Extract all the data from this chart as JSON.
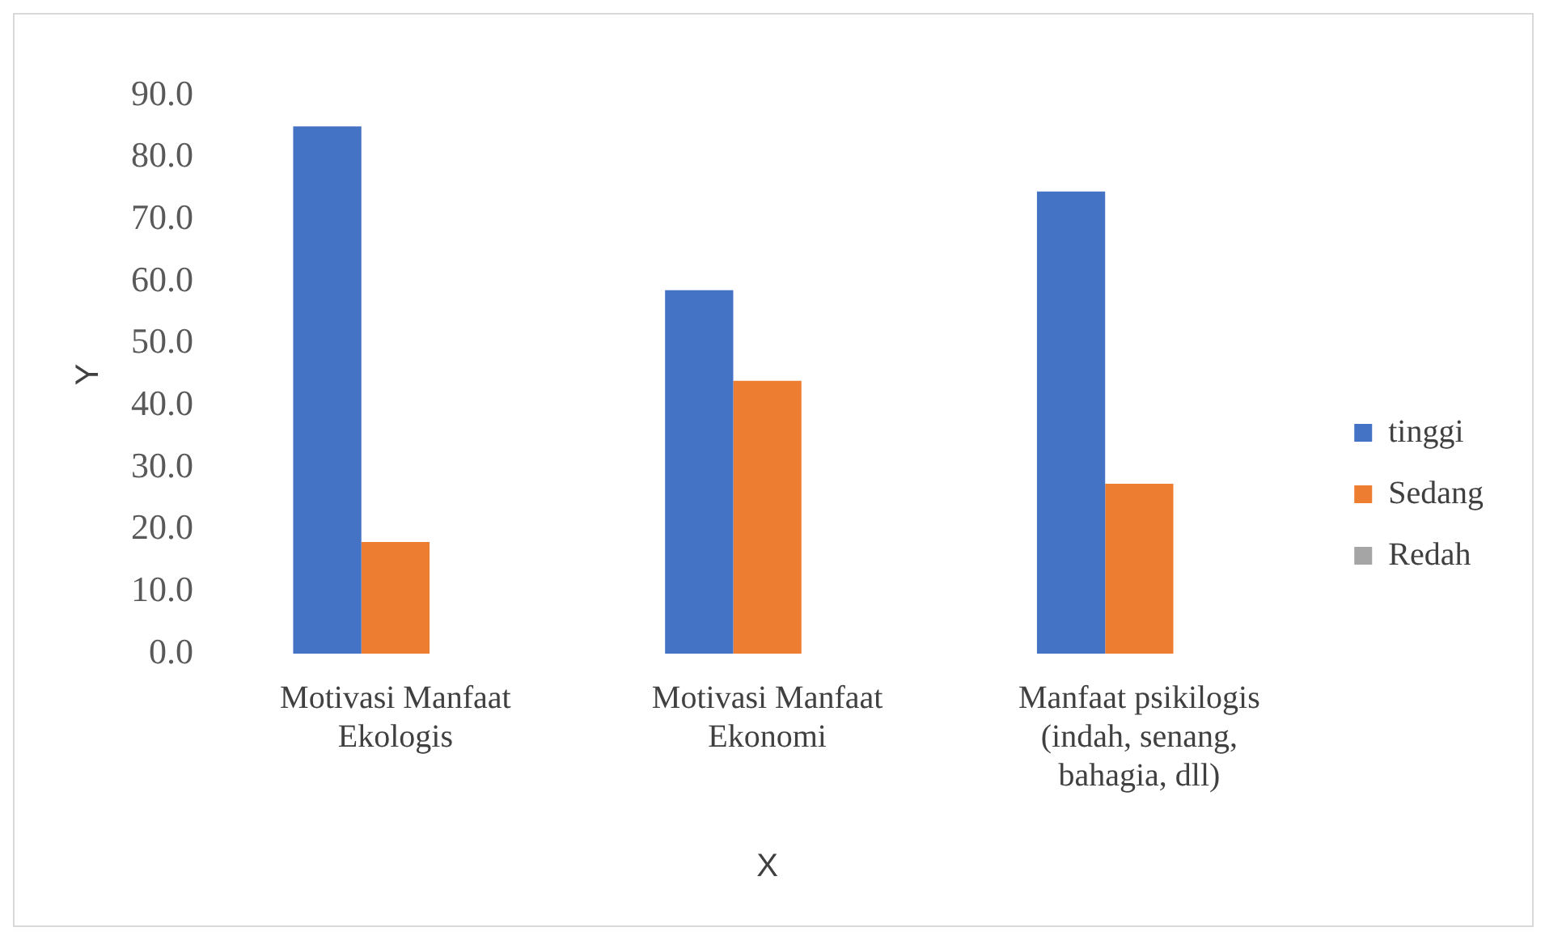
{
  "chart_data": {
    "type": "bar",
    "xlabel": "X",
    "ylabel": "Y",
    "categories": [
      "Motivasi Manfaat Ekologis",
      "Motivasi Manfaat Ekonomi",
      "Manfaat psikilogis (indah, senang, bahagia, dll)"
    ],
    "series": [
      {
        "name": "tinggi",
        "color": "#4472c4",
        "values": [
          85,
          58.6,
          74.5
        ]
      },
      {
        "name": "Sedang",
        "color": "#ed7d31",
        "values": [
          18,
          44,
          27.4
        ]
      },
      {
        "name": "Redah",
        "color": "#a5a5a5",
        "values": [
          0,
          0,
          0
        ]
      }
    ],
    "ylim": [
      0,
      90
    ],
    "yticks": [
      {
        "value": 0,
        "label": "0.0"
      },
      {
        "value": 10,
        "label": "10.0"
      },
      {
        "value": 20,
        "label": "20.0"
      },
      {
        "value": 30,
        "label": "30.0"
      },
      {
        "value": 40,
        "label": "40.0"
      },
      {
        "value": 50,
        "label": "50.0"
      },
      {
        "value": 60,
        "label": "60.0"
      },
      {
        "value": 70,
        "label": "70.0"
      },
      {
        "value": 80,
        "label": "80.0"
      },
      {
        "value": 90,
        "label": "90.0"
      }
    ],
    "grid": false,
    "legend": "right"
  }
}
